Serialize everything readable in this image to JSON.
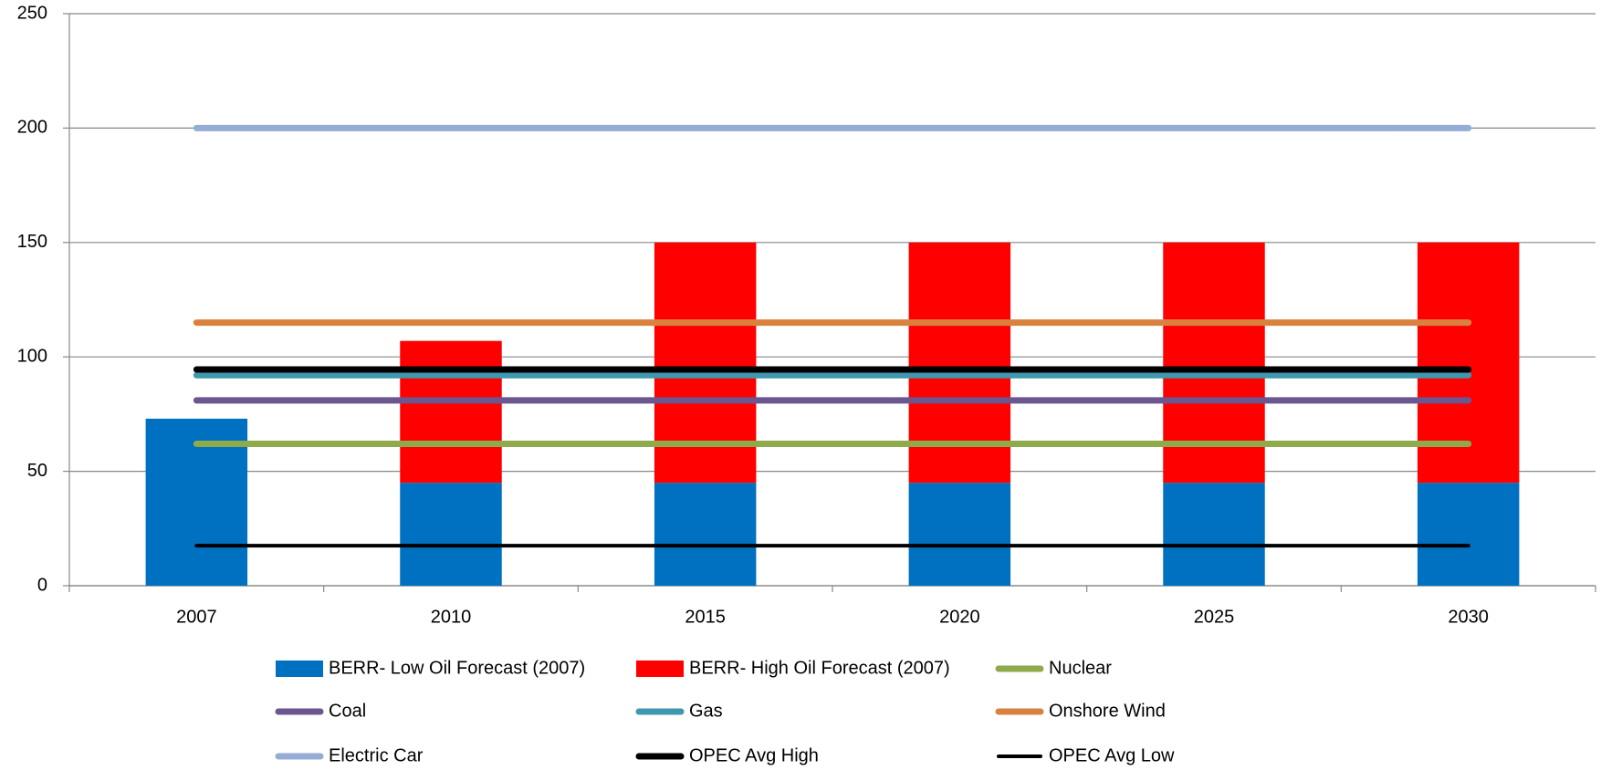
{
  "chart_data": {
    "type": "bar",
    "categories": [
      "2007",
      "2010",
      "2015",
      "2020",
      "2025",
      "2030"
    ],
    "ylim": [
      0,
      250
    ],
    "yticks": [
      0,
      50,
      100,
      150,
      200,
      250
    ],
    "grid": true,
    "stacked": true,
    "series": [
      {
        "name": "BERR- Low Oil Forecast (2007)",
        "type": "bar",
        "color": "#0070c0",
        "values": [
          73,
          45,
          45,
          45,
          45,
          45
        ]
      },
      {
        "name": "BERR- High Oil Forecast (2007)",
        "type": "bar",
        "color": "#ff0000",
        "values": [
          0,
          62,
          105,
          105,
          105,
          105
        ]
      },
      {
        "name": "Nuclear",
        "type": "line",
        "color": "#8faa4a",
        "width": 7,
        "values": [
          62,
          62,
          62,
          62,
          62,
          62
        ]
      },
      {
        "name": "Coal",
        "type": "line",
        "color": "#6b5690",
        "width": 7,
        "values": [
          81,
          81,
          81,
          81,
          81,
          81
        ]
      },
      {
        "name": "Gas",
        "type": "line",
        "color": "#3f98ad",
        "width": 7,
        "values": [
          92,
          92,
          92,
          92,
          92,
          92
        ]
      },
      {
        "name": "Onshore Wind",
        "type": "line",
        "color": "#d98240",
        "width": 7,
        "values": [
          115,
          115,
          115,
          115,
          115,
          115
        ]
      },
      {
        "name": "Electric Car",
        "type": "line",
        "color": "#95acd4",
        "width": 7,
        "values": [
          200,
          200,
          200,
          200,
          200,
          200
        ]
      },
      {
        "name": "OPEC Avg High",
        "type": "line",
        "color": "#000000",
        "width": 7,
        "values": [
          94.5,
          94.5,
          94.5,
          94.5,
          94.5,
          94.5
        ]
      },
      {
        "name": "OPEC Avg Low",
        "type": "line",
        "color": "#000000",
        "width": 4,
        "values": [
          17.5,
          17.5,
          17.5,
          17.5,
          17.5,
          17.5
        ]
      }
    ]
  }
}
